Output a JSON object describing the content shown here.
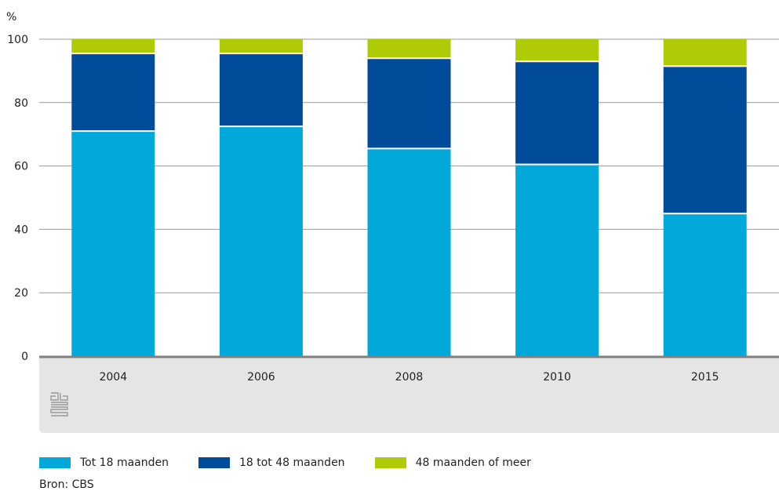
{
  "chart_data": {
    "type": "bar",
    "stacked": true,
    "ylabel": "%",
    "ylim": [
      0,
      100
    ],
    "yticks": [
      0,
      20,
      40,
      60,
      80,
      100
    ],
    "categories": [
      "2004",
      "2006",
      "2008",
      "2010",
      "2015"
    ],
    "series": [
      {
        "name": "Tot 18 maanden",
        "color": "#00a9d9",
        "values": [
          71.0,
          72.5,
          65.5,
          60.5,
          45.0
        ]
      },
      {
        "name": "18 tot 48 maanden",
        "color": "#004c9a",
        "values": [
          24.5,
          23.0,
          28.5,
          32.5,
          46.5
        ]
      },
      {
        "name": "48 maanden of meer",
        "color": "#afcb05",
        "values": [
          4.5,
          4.5,
          6.0,
          7.0,
          8.5
        ]
      }
    ],
    "grid": true,
    "legend": "bottom-left"
  },
  "source": "Bron: CBS",
  "logo": "cbs",
  "colors": {
    "axis_band": "#e5e5e5",
    "axis_line": "#808080",
    "grid": "#999999"
  }
}
